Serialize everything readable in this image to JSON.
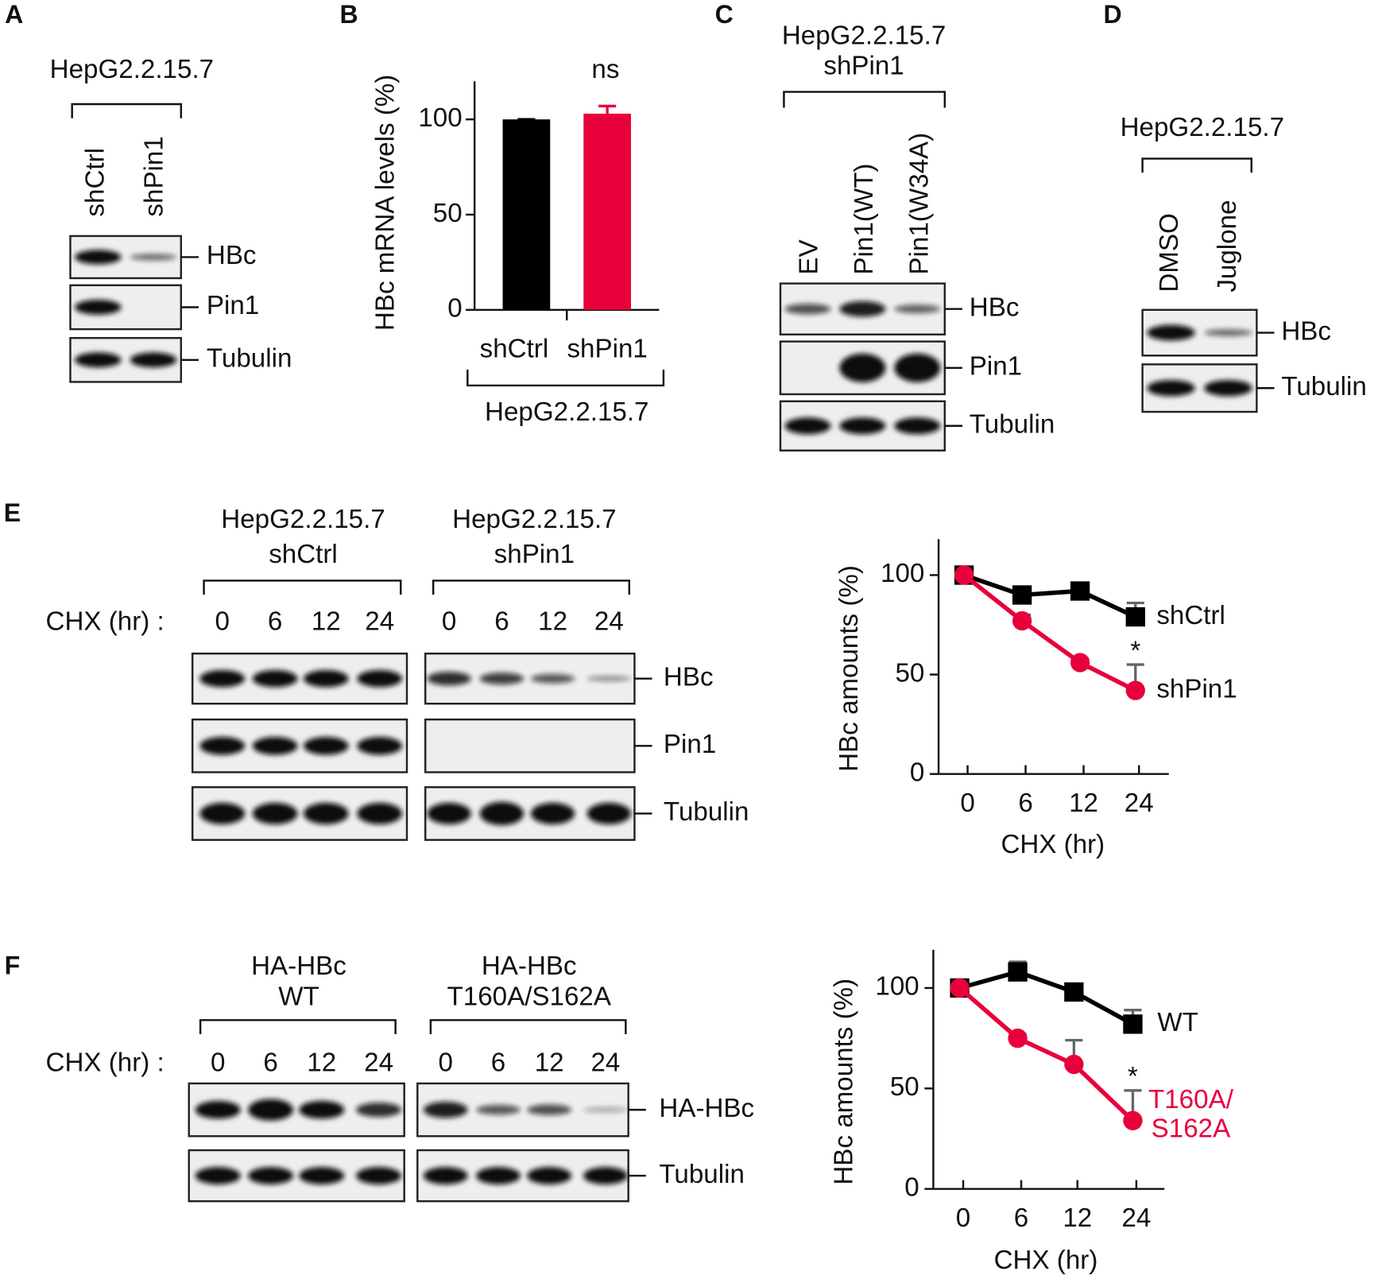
{
  "panels": {
    "A": {
      "label": "A",
      "title": [
        "HepG2.2.15.7"
      ],
      "lanes": [
        "shCtrl",
        "shPin1"
      ],
      "rows": [
        "HBc",
        "Pin1",
        "Tubulin"
      ]
    },
    "B": {
      "label": "B"
    },
    "C": {
      "label": "C",
      "title": [
        "HepG2.2.15.7",
        "shPin1"
      ],
      "lanes": [
        "EV",
        "Pin1(WT)",
        "Pin1(W34A)"
      ],
      "rows": [
        "HBc",
        "Pin1",
        "Tubulin"
      ]
    },
    "D": {
      "label": "D",
      "title": [
        "HepG2.2.15.7"
      ],
      "lanes": [
        "DMSO",
        "Juglone"
      ],
      "rows": [
        "HBc",
        "Tubulin"
      ]
    },
    "E": {
      "label": "E",
      "treatment": "CHX (hr) :",
      "groups": [
        {
          "title": [
            "HepG2.2.15.7",
            "shCtrl"
          ],
          "lanes": [
            "0",
            "6",
            "12",
            "24"
          ]
        },
        {
          "title": [
            "HepG2.2.15.7",
            "shPin1"
          ],
          "lanes": [
            "0",
            "6",
            "12",
            "24"
          ]
        }
      ],
      "rows": [
        "HBc",
        "Pin1",
        "Tubulin"
      ]
    },
    "F": {
      "label": "F",
      "treatment": "CHX (hr) :",
      "groups": [
        {
          "title": [
            "HA-HBc",
            "WT"
          ],
          "lanes": [
            "0",
            "6",
            "12",
            "24"
          ]
        },
        {
          "title": [
            "HA-HBc",
            "T160A/S162A"
          ],
          "lanes": [
            "0",
            "6",
            "12",
            "24"
          ]
        }
      ],
      "rows": [
        "HA-HBc",
        "Tubulin"
      ]
    }
  },
  "chart_data": [
    {
      "type": "bar",
      "ylabel": "HBc mRNA levels (%)",
      "categories": [
        "shCtrl",
        "shPin1"
      ],
      "values": [
        100,
        103
      ],
      "errors": [
        0,
        4
      ],
      "colors": [
        "#000000",
        "#e8003d"
      ],
      "ylim": [
        0,
        120
      ],
      "yticks": [
        0,
        50,
        100
      ],
      "annotation": "ns",
      "group_label": "HepG2.2.15.7"
    },
    {
      "type": "line",
      "ylabel": "HBc amounts (%)",
      "xlabel": "CHX (hr)",
      "categories": [
        "0",
        "6",
        "12",
        "24"
      ],
      "series": [
        {
          "name": "shCtrl",
          "color": "#000000",
          "marker": "square",
          "values": [
            100,
            90,
            92,
            79
          ],
          "errors": [
            0,
            3,
            3,
            7
          ]
        },
        {
          "name": "shPin1",
          "color": "#e8003d",
          "marker": "circle",
          "values": [
            100,
            77,
            56,
            42
          ],
          "errors": [
            0,
            3,
            2,
            13
          ]
        }
      ],
      "ylim": [
        0,
        118
      ],
      "yticks": [
        0,
        50,
        100
      ],
      "annotation": "*"
    },
    {
      "type": "line",
      "ylabel": "HBc amounts (%)",
      "xlabel": "CHX (hr)",
      "categories": [
        "0",
        "6",
        "12",
        "24"
      ],
      "series": [
        {
          "name": "WT",
          "color": "#000000",
          "marker": "square",
          "values": [
            100,
            108,
            98,
            82
          ],
          "errors": [
            0,
            5,
            3,
            7
          ]
        },
        {
          "name": "T160A/S162A",
          "color": "#e8003d",
          "marker": "circle",
          "values": [
            100,
            75,
            62,
            34
          ],
          "errors": [
            0,
            2,
            12,
            15
          ]
        }
      ],
      "ylim": [
        0,
        119
      ],
      "yticks": [
        0,
        50,
        100
      ],
      "annotation": "*"
    }
  ]
}
